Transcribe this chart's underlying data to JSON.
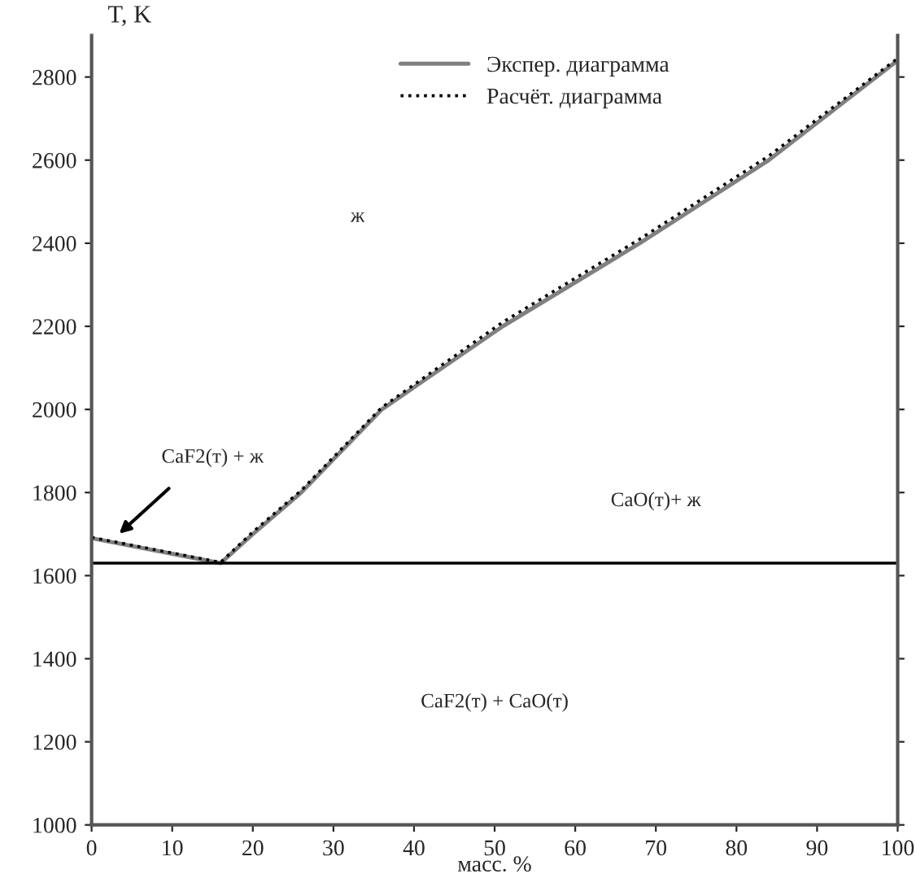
{
  "chart_data": {
    "type": "line",
    "xlabel": "масс. %",
    "ylabel": "T, K",
    "xlim": [
      0,
      100
    ],
    "ylim": [
      1000,
      2900
    ],
    "xticks": [
      0,
      10,
      20,
      30,
      40,
      50,
      60,
      70,
      80,
      90,
      100
    ],
    "yticks": [
      1000,
      1200,
      1400,
      1600,
      1800,
      2000,
      2200,
      2400,
      2600,
      2800
    ],
    "series": [
      {
        "name": "Экспер. диаграмма",
        "color": "#808080",
        "line_style": "solid",
        "x": [
          0,
          16,
          20,
          26,
          36,
          51,
          68,
          84,
          100
        ],
        "values": [
          1690,
          1630,
          1700,
          1800,
          2000,
          2200,
          2400,
          2600,
          2840
        ]
      },
      {
        "name": "Расчёт. диаграмма",
        "color": "#000000",
        "line_style": "dotted",
        "x": [
          0,
          16,
          20,
          26,
          36,
          51,
          68,
          84,
          100
        ],
        "values": [
          1692,
          1632,
          1705,
          1805,
          2005,
          2210,
          2410,
          2610,
          2845
        ]
      }
    ],
    "ref_lines": [
      {
        "axis": "y",
        "value": 1630,
        "color": "#000000",
        "line_style": "solid"
      }
    ],
    "annotations": [
      "ж",
      "CaF2(т) + ж",
      "CaO(т)+ ж",
      "CaF2(т) + CaO(т)"
    ],
    "legend": "top",
    "grid": false
  }
}
